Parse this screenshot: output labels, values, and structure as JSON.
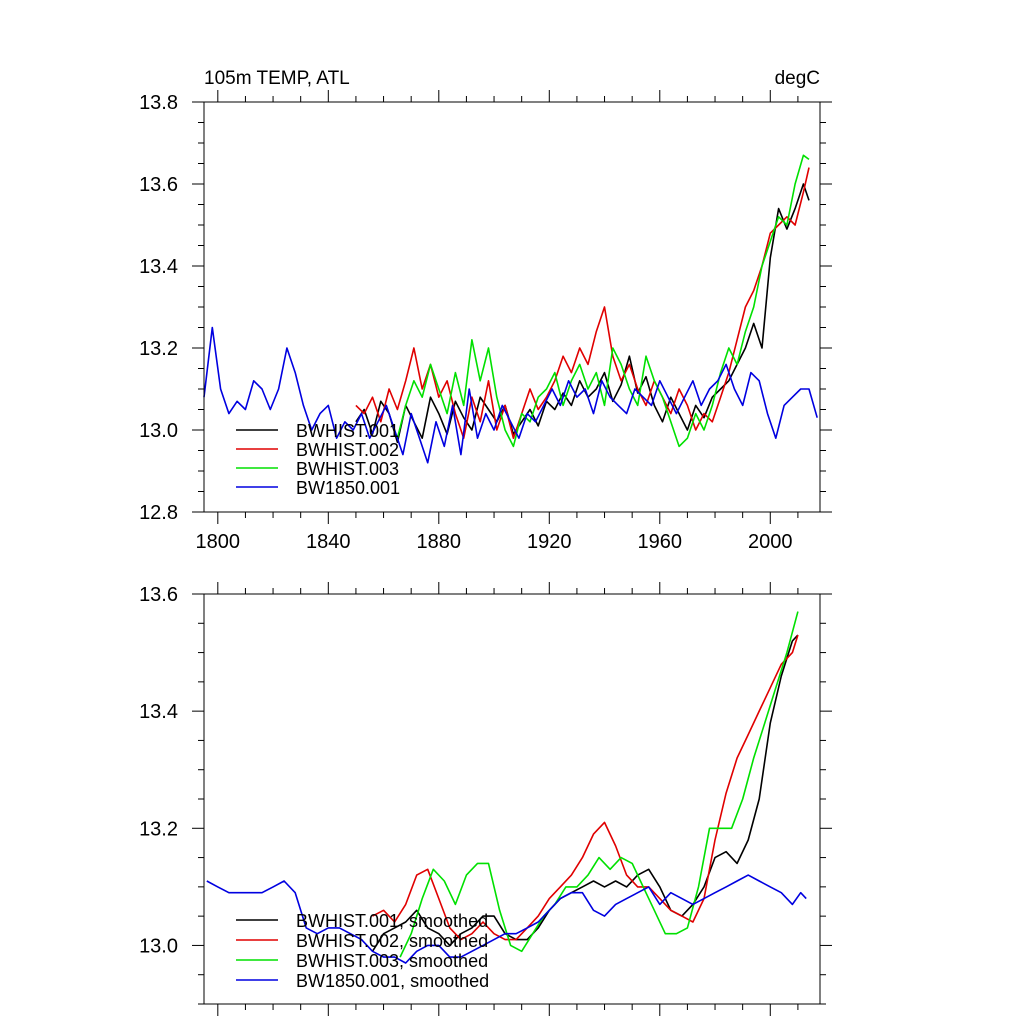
{
  "chart_data": [
    {
      "type": "line",
      "title": "105m TEMP, ATL",
      "units": "degC",
      "xlim": [
        1795,
        2018
      ],
      "ylim": [
        12.8,
        13.8
      ],
      "xticks": [
        1800,
        1840,
        1880,
        1920,
        1960,
        2000
      ],
      "yticks": [
        12.8,
        13.0,
        13.2,
        13.4,
        13.6,
        13.8
      ],
      "ytick_labels": [
        "12.8",
        "13.0",
        "13.2",
        "13.4",
        "13.6",
        "13.8"
      ],
      "legend_position": "bottom-left",
      "series": [
        {
          "name": "BWHIST.001",
          "color": "#000000",
          "x": [
            1850,
            1853,
            1856,
            1859,
            1862,
            1865,
            1868,
            1871,
            1874,
            1877,
            1880,
            1883,
            1886,
            1889,
            1892,
            1895,
            1898,
            1901,
            1904,
            1907,
            1910,
            1913,
            1916,
            1919,
            1922,
            1925,
            1928,
            1931,
            1934,
            1937,
            1940,
            1943,
            1946,
            1949,
            1952,
            1955,
            1958,
            1961,
            1964,
            1967,
            1970,
            1973,
            1976,
            1979,
            1982,
            1985,
            1988,
            1991,
            1994,
            1997,
            2000,
            2003,
            2006,
            2009,
            2012,
            2014
          ],
          "y": [
            13.02,
            13.05,
            12.99,
            13.07,
            13.04,
            12.97,
            13.06,
            13.02,
            12.98,
            13.08,
            13.04,
            12.99,
            13.07,
            13.03,
            13.0,
            13.08,
            13.05,
            13.02,
            13.06,
            12.99,
            13.02,
            13.05,
            13.01,
            13.07,
            13.05,
            13.09,
            13.06,
            13.12,
            13.08,
            13.1,
            13.14,
            13.07,
            13.11,
            13.18,
            13.09,
            13.13,
            13.06,
            13.02,
            13.08,
            13.04,
            13.0,
            13.06,
            13.03,
            13.08,
            13.1,
            13.12,
            13.16,
            13.2,
            13.26,
            13.2,
            13.42,
            13.54,
            13.49,
            13.54,
            13.6,
            13.56
          ]
        },
        {
          "name": "BWHIST.002",
          "color": "#e00000",
          "x": [
            1850,
            1853,
            1856,
            1859,
            1862,
            1865,
            1868,
            1871,
            1874,
            1877,
            1880,
            1883,
            1886,
            1889,
            1892,
            1895,
            1898,
            1901,
            1904,
            1907,
            1910,
            1913,
            1916,
            1919,
            1922,
            1925,
            1928,
            1931,
            1934,
            1937,
            1940,
            1943,
            1946,
            1949,
            1952,
            1955,
            1958,
            1961,
            1964,
            1967,
            1970,
            1973,
            1976,
            1979,
            1982,
            1985,
            1988,
            1991,
            1994,
            1997,
            2000,
            2003,
            2006,
            2009,
            2012,
            2014
          ],
          "y": [
            13.06,
            13.04,
            13.08,
            13.02,
            13.1,
            13.05,
            13.12,
            13.2,
            13.1,
            13.16,
            13.08,
            13.12,
            13.04,
            12.98,
            13.08,
            13.02,
            13.12,
            13.0,
            13.06,
            12.98,
            13.04,
            13.1,
            13.05,
            13.08,
            13.12,
            13.18,
            13.14,
            13.2,
            13.16,
            13.24,
            13.3,
            13.18,
            13.12,
            13.16,
            13.1,
            13.06,
            13.12,
            13.08,
            13.04,
            13.1,
            13.06,
            13.0,
            13.04,
            13.02,
            13.08,
            13.14,
            13.22,
            13.3,
            13.34,
            13.4,
            13.48,
            13.5,
            13.52,
            13.5,
            13.58,
            13.64
          ]
        },
        {
          "name": "BWHIST.003",
          "color": "#00e000",
          "x": [
            1865,
            1868,
            1871,
            1874,
            1877,
            1880,
            1883,
            1886,
            1889,
            1892,
            1895,
            1898,
            1901,
            1904,
            1907,
            1910,
            1913,
            1916,
            1919,
            1922,
            1925,
            1928,
            1931,
            1934,
            1937,
            1940,
            1943,
            1946,
            1949,
            1952,
            1955,
            1958,
            1961,
            1964,
            1967,
            1970,
            1973,
            1976,
            1979,
            1982,
            1985,
            1988,
            1991,
            1994,
            1997,
            2000,
            2003,
            2006,
            2009,
            2012,
            2014
          ],
          "y": [
            12.98,
            13.06,
            13.12,
            13.08,
            13.16,
            13.1,
            13.04,
            13.14,
            13.06,
            13.22,
            13.12,
            13.2,
            13.08,
            13.0,
            12.96,
            13.04,
            13.02,
            13.08,
            13.1,
            13.14,
            13.06,
            13.12,
            13.16,
            13.1,
            13.14,
            13.06,
            13.2,
            13.16,
            13.1,
            13.06,
            13.18,
            13.12,
            13.08,
            13.02,
            12.96,
            12.98,
            13.04,
            13.0,
            13.06,
            13.14,
            13.2,
            13.16,
            13.24,
            13.3,
            13.4,
            13.46,
            13.52,
            13.5,
            13.6,
            13.67,
            13.66
          ]
        },
        {
          "name": "BW1850.001",
          "color": "#0000e0",
          "x": [
            1795,
            1798,
            1801,
            1804,
            1807,
            1810,
            1813,
            1816,
            1819,
            1822,
            1825,
            1828,
            1831,
            1834,
            1837,
            1840,
            1843,
            1846,
            1849,
            1852,
            1855,
            1858,
            1861,
            1864,
            1867,
            1870,
            1873,
            1876,
            1879,
            1882,
            1885,
            1888,
            1891,
            1894,
            1897,
            1900,
            1903,
            1906,
            1909,
            1912,
            1915,
            1918,
            1921,
            1924,
            1927,
            1930,
            1933,
            1936,
            1939,
            1942,
            1945,
            1948,
            1951,
            1954,
            1957,
            1960,
            1963,
            1966,
            1969,
            1972,
            1975,
            1978,
            1981,
            1984,
            1987,
            1990,
            1993,
            1996,
            1999,
            2002,
            2005,
            2008,
            2011,
            2014,
            2017
          ],
          "y": [
            13.08,
            13.25,
            13.1,
            13.04,
            13.07,
            13.05,
            13.12,
            13.1,
            13.05,
            13.1,
            13.2,
            13.14,
            13.06,
            13.0,
            13.04,
            13.06,
            12.98,
            13.02,
            13.0,
            13.04,
            12.98,
            13.02,
            13.06,
            13.0,
            12.94,
            13.04,
            12.98,
            12.92,
            13.02,
            12.96,
            13.06,
            12.94,
            13.1,
            12.98,
            13.04,
            13.0,
            13.06,
            13.02,
            12.98,
            13.04,
            13.02,
            13.06,
            13.1,
            13.06,
            13.12,
            13.08,
            13.1,
            13.04,
            13.12,
            13.08,
            13.06,
            13.04,
            13.1,
            13.08,
            13.06,
            13.12,
            13.08,
            13.04,
            13.08,
            13.12,
            13.06,
            13.1,
            13.12,
            13.16,
            13.1,
            13.06,
            13.14,
            13.12,
            13.04,
            12.98,
            13.06,
            13.08,
            13.1,
            13.1,
            13.03
          ]
        }
      ]
    },
    {
      "type": "line",
      "xlim": [
        1795,
        2018
      ],
      "ylim": [
        12.9,
        13.6
      ],
      "xticks": [
        1800,
        1840,
        1880,
        1920,
        1960,
        2000
      ],
      "yticks": [
        13.0,
        13.2,
        13.4,
        13.6
      ],
      "ytick_labels": [
        "13.0",
        "13.2",
        "13.4",
        "13.6"
      ],
      "legend_position": "bottom-left",
      "series": [
        {
          "name": "BWHIST.001, smoothed",
          "color": "#000000",
          "x": [
            1856,
            1860,
            1864,
            1868,
            1872,
            1876,
            1880,
            1884,
            1888,
            1892,
            1896,
            1900,
            1904,
            1908,
            1912,
            1916,
            1920,
            1924,
            1928,
            1932,
            1936,
            1940,
            1944,
            1948,
            1952,
            1956,
            1960,
            1964,
            1968,
            1972,
            1976,
            1980,
            1984,
            1988,
            1992,
            1996,
            2000,
            2004,
            2008,
            2010
          ],
          "y": [
            12.99,
            13.02,
            13.03,
            13.04,
            13.06,
            13.03,
            13.02,
            13.0,
            13.02,
            13.03,
            13.05,
            13.05,
            13.02,
            13.01,
            13.01,
            13.03,
            13.06,
            13.08,
            13.09,
            13.1,
            13.11,
            13.1,
            13.11,
            13.1,
            13.12,
            13.13,
            13.1,
            13.06,
            13.05,
            13.07,
            13.1,
            13.15,
            13.16,
            13.14,
            13.18,
            13.25,
            13.38,
            13.46,
            13.52,
            13.53
          ]
        },
        {
          "name": "BWHIST.002, smoothed",
          "color": "#e00000",
          "x": [
            1856,
            1860,
            1864,
            1868,
            1872,
            1876,
            1880,
            1884,
            1888,
            1892,
            1896,
            1900,
            1904,
            1908,
            1912,
            1916,
            1920,
            1924,
            1928,
            1932,
            1936,
            1940,
            1944,
            1948,
            1952,
            1956,
            1960,
            1964,
            1968,
            1972,
            1976,
            1980,
            1984,
            1988,
            1992,
            1996,
            2000,
            2004,
            2008,
            2010
          ],
          "y": [
            13.05,
            13.06,
            13.04,
            13.07,
            13.12,
            13.13,
            13.08,
            13.03,
            13.01,
            13.02,
            13.04,
            13.02,
            13.01,
            13.01,
            13.03,
            13.05,
            13.08,
            13.1,
            13.12,
            13.15,
            13.19,
            13.21,
            13.17,
            13.12,
            13.1,
            13.1,
            13.08,
            13.06,
            13.05,
            13.04,
            13.08,
            13.18,
            13.26,
            13.32,
            13.36,
            13.4,
            13.44,
            13.48,
            13.5,
            13.53
          ]
        },
        {
          "name": "BWHIST.003, smoothed",
          "color": "#00e000",
          "x": [
            1866,
            1870,
            1874,
            1878,
            1882,
            1886,
            1890,
            1894,
            1898,
            1902,
            1906,
            1910,
            1914,
            1918,
            1922,
            1926,
            1930,
            1934,
            1938,
            1942,
            1946,
            1950,
            1954,
            1958,
            1962,
            1966,
            1970,
            1974,
            1978,
            1982,
            1986,
            1990,
            1994,
            1998,
            2002,
            2006,
            2010
          ],
          "y": [
            12.98,
            13.02,
            13.08,
            13.13,
            13.11,
            13.07,
            13.12,
            13.14,
            13.14,
            13.06,
            13.0,
            12.99,
            13.02,
            13.05,
            13.07,
            13.1,
            13.1,
            13.12,
            13.15,
            13.13,
            13.15,
            13.14,
            13.1,
            13.06,
            13.02,
            13.02,
            13.03,
            13.1,
            13.2,
            13.2,
            13.2,
            13.25,
            13.32,
            13.38,
            13.44,
            13.5,
            13.57
          ]
        },
        {
          "name": "BW1850.001, smoothed",
          "color": "#0000e0",
          "x": [
            1796,
            1800,
            1804,
            1808,
            1812,
            1816,
            1820,
            1824,
            1828,
            1832,
            1836,
            1840,
            1844,
            1848,
            1852,
            1856,
            1860,
            1864,
            1868,
            1872,
            1876,
            1880,
            1884,
            1888,
            1892,
            1896,
            1900,
            1904,
            1908,
            1912,
            1916,
            1920,
            1924,
            1928,
            1932,
            1936,
            1940,
            1944,
            1948,
            1952,
            1956,
            1960,
            1964,
            1968,
            1972,
            1976,
            1980,
            1984,
            1988,
            1992,
            1996,
            2000,
            2004,
            2008,
            2011,
            2013
          ],
          "y": [
            13.11,
            13.1,
            13.09,
            13.09,
            13.09,
            13.09,
            13.1,
            13.11,
            13.09,
            13.03,
            13.02,
            13.03,
            13.03,
            13.02,
            13.01,
            12.99,
            12.98,
            12.98,
            12.97,
            12.99,
            13.0,
            13.0,
            12.98,
            12.98,
            12.99,
            13.0,
            13.01,
            13.02,
            13.02,
            13.03,
            13.04,
            13.06,
            13.08,
            13.09,
            13.09,
            13.06,
            13.05,
            13.07,
            13.08,
            13.09,
            13.1,
            13.07,
            13.09,
            13.08,
            13.07,
            13.08,
            13.09,
            13.1,
            13.11,
            13.12,
            13.11,
            13.1,
            13.09,
            13.07,
            13.09,
            13.08
          ]
        }
      ]
    }
  ]
}
